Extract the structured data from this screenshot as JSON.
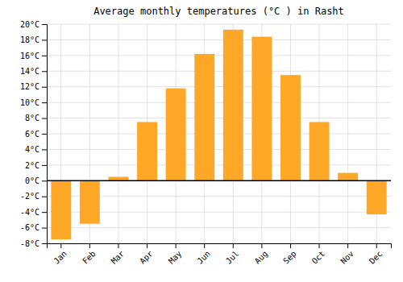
{
  "chart_data": {
    "type": "bar",
    "title": "Average monthly temperatures (°C ) in Rasht",
    "categories": [
      "Jan",
      "Feb",
      "Mar",
      "Apr",
      "May",
      "Jun",
      "Jul",
      "Aug",
      "Sep",
      "Oct",
      "Nov",
      "Dec"
    ],
    "values": [
      -7.5,
      -5.5,
      0.5,
      7.5,
      11.8,
      16.2,
      19.3,
      18.4,
      13.5,
      7.5,
      1.0,
      -4.3
    ],
    "color": "#FFA828",
    "ylim": [
      -8,
      20
    ],
    "yticks": [
      {
        "value": -8,
        "label": "-8°C"
      },
      {
        "value": -6,
        "label": "-6°C"
      },
      {
        "value": -4,
        "label": "-4°C"
      },
      {
        "value": -2,
        "label": "-2°C"
      },
      {
        "value": 0,
        "label": "0°C"
      },
      {
        "value": 2,
        "label": "2°C"
      },
      {
        "value": 4,
        "label": "4°C"
      },
      {
        "value": 6,
        "label": "6°C"
      },
      {
        "value": 8,
        "label": "8°C"
      },
      {
        "value": 10,
        "label": "10°C"
      },
      {
        "value": 12,
        "label": "12°C"
      },
      {
        "value": 14,
        "label": "14°C"
      },
      {
        "value": 16,
        "label": "16°C"
      },
      {
        "value": 18,
        "label": "18°C"
      },
      {
        "value": 20,
        "label": "20°C"
      }
    ],
    "grid": true
  }
}
